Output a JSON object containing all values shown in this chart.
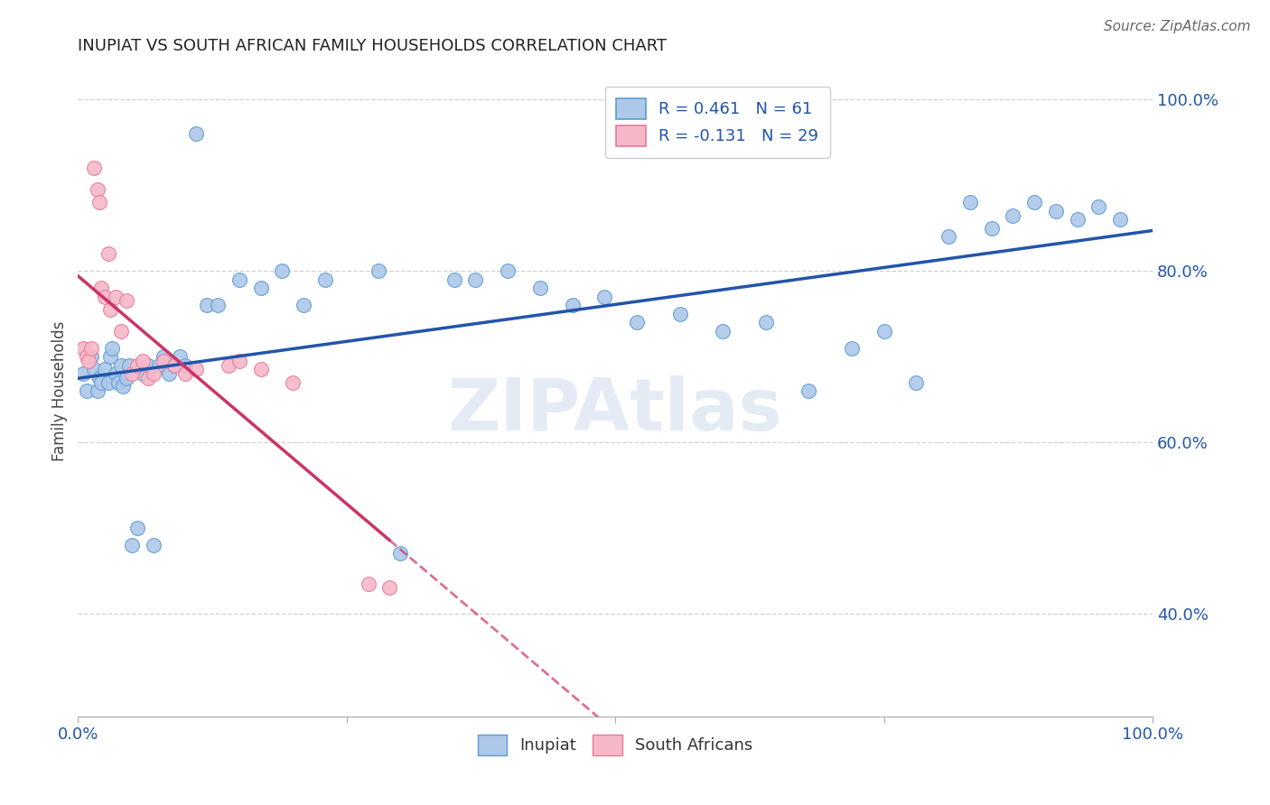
{
  "title": "INUPIAT VS SOUTH AFRICAN FAMILY HOUSEHOLDS CORRELATION CHART",
  "source_text": "Source: ZipAtlas.com",
  "ylabel": "Family Households",
  "xlim": [
    0.0,
    1.0
  ],
  "ylim": [
    0.28,
    1.04
  ],
  "y_ticks_right": [
    0.4,
    0.6,
    0.8,
    1.0
  ],
  "y_tick_labels_right": [
    "40.0%",
    "60.0%",
    "80.0%",
    "100.0%"
  ],
  "legend_r1": "R = 0.461",
  "legend_n1": "N = 61",
  "legend_r2": "R = -0.131",
  "legend_n2": "N = 29",
  "inupiat_color": "#adc8e8",
  "sa_color": "#f5b8c8",
  "inupiat_edge_color": "#5b9bd5",
  "sa_edge_color": "#e8799a",
  "inupiat_line_color": "#2255aa",
  "sa_line_color": "#cc3366",
  "watermark": "ZIPAtlas",
  "background_color": "#ffffff",
  "grid_color": "#cccccc",
  "title_color": "#222222",
  "source_color": "#666666",
  "axis_label_color": "#2255aa",
  "inupiat_x": [
    0.005,
    0.008,
    0.012,
    0.015,
    0.018,
    0.02,
    0.022,
    0.025,
    0.028,
    0.03,
    0.032,
    0.035,
    0.038,
    0.04,
    0.042,
    0.045,
    0.048,
    0.05,
    0.055,
    0.06,
    0.065,
    0.07,
    0.075,
    0.08,
    0.085,
    0.09,
    0.095,
    0.1,
    0.11,
    0.12,
    0.13,
    0.15,
    0.17,
    0.19,
    0.21,
    0.23,
    0.28,
    0.3,
    0.35,
    0.37,
    0.4,
    0.43,
    0.46,
    0.49,
    0.52,
    0.56,
    0.6,
    0.64,
    0.68,
    0.72,
    0.75,
    0.78,
    0.81,
    0.83,
    0.85,
    0.87,
    0.89,
    0.91,
    0.93,
    0.95,
    0.97
  ],
  "inupiat_y": [
    0.68,
    0.66,
    0.7,
    0.685,
    0.66,
    0.675,
    0.67,
    0.685,
    0.67,
    0.7,
    0.71,
    0.68,
    0.67,
    0.69,
    0.665,
    0.675,
    0.69,
    0.48,
    0.5,
    0.68,
    0.69,
    0.48,
    0.69,
    0.7,
    0.68,
    0.69,
    0.7,
    0.69,
    0.96,
    0.76,
    0.76,
    0.79,
    0.78,
    0.8,
    0.76,
    0.79,
    0.8,
    0.47,
    0.79,
    0.79,
    0.8,
    0.78,
    0.76,
    0.77,
    0.74,
    0.75,
    0.73,
    0.74,
    0.66,
    0.71,
    0.73,
    0.67,
    0.84,
    0.88,
    0.85,
    0.865,
    0.88,
    0.87,
    0.86,
    0.875,
    0.86
  ],
  "sa_x": [
    0.005,
    0.008,
    0.01,
    0.012,
    0.015,
    0.018,
    0.02,
    0.022,
    0.025,
    0.028,
    0.03,
    0.035,
    0.04,
    0.045,
    0.05,
    0.055,
    0.06,
    0.065,
    0.07,
    0.08,
    0.09,
    0.1,
    0.11,
    0.14,
    0.15,
    0.17,
    0.2,
    0.27,
    0.29
  ],
  "sa_y": [
    0.71,
    0.7,
    0.695,
    0.71,
    0.92,
    0.895,
    0.88,
    0.78,
    0.77,
    0.82,
    0.755,
    0.77,
    0.73,
    0.765,
    0.68,
    0.69,
    0.695,
    0.675,
    0.68,
    0.695,
    0.69,
    0.68,
    0.685,
    0.69,
    0.695,
    0.685,
    0.67,
    0.435,
    0.43
  ]
}
